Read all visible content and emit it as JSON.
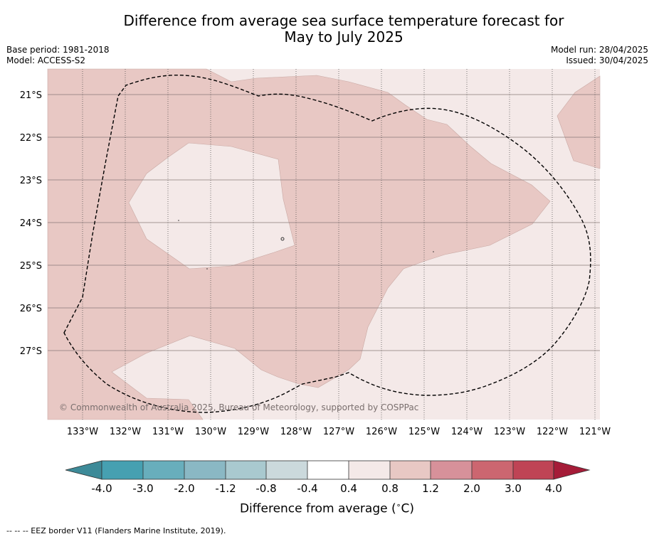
{
  "title": {
    "line1": "Difference from average sea surface temperature forecast for",
    "line2": "May to July 2025"
  },
  "meta": {
    "base_period": "Base period: 1981-2018",
    "model": "Model: ACCESS-S2",
    "model_run": "Model run: 28/04/2025",
    "issued": "Issued: 30/04/2025"
  },
  "map": {
    "lat_labels": [
      "21°S",
      "22°S",
      "23°S",
      "24°S",
      "25°S",
      "26°S",
      "27°S"
    ],
    "lon_labels": [
      "133°W",
      "132°W",
      "131°W",
      "130°W",
      "129°W",
      "128°W",
      "127°W",
      "126°W",
      "125°W",
      "124°W",
      "123°W",
      "122°W",
      "121°W"
    ],
    "copyright": "© Commonwealth of Australia 2025, Bureau of Meteorology, supported by COSPPac",
    "colors": {
      "band_04_08": "#f4e9e8",
      "band_08_12": "#e8c8c4"
    }
  },
  "colorbar": {
    "ticks": [
      "-4.0",
      "-3.0",
      "-2.0",
      "-1.2",
      "-0.8",
      "-0.4",
      "0.4",
      "0.8",
      "1.2",
      "2.0",
      "3.0",
      "4.0"
    ],
    "colors": [
      "#3d8a98",
      "#46a0b1",
      "#68aebc",
      "#8ab8c4",
      "#a9c9cf",
      "#cbd9dc",
      "#ffffff",
      "#f4e9e8",
      "#e8c8c4",
      "#d7919a",
      "#cc6670",
      "#bf4455",
      "#a51c38"
    ],
    "label": "Difference from average (",
    "label_symbol": "∘",
    "label_unit": "C)"
  },
  "footer": "--  --  -- EEZ border V11 (Flanders Marine Institute, 2019)."
}
